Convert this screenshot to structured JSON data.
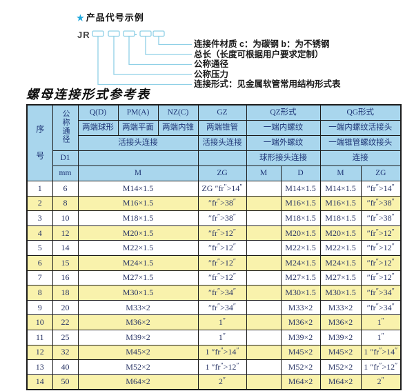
{
  "colors": {
    "header_bg": "#a9d6ed",
    "row_alt_bg": "#f9f2ac",
    "header_text": "#1e3576",
    "data_text": "#283465",
    "line_cyan": "#8fd0e6",
    "star_cyan": "#1ea7dc",
    "border": "#1b1b1b"
  },
  "product_code": {
    "star": "★",
    "section_title": "产品代号示例",
    "prefix": "JR",
    "dash": "-",
    "labels": [
      "连接件材质  c：为碳钢  b：为不锈钢",
      "总长（长度可根据用户要求定制）",
      "公称通径",
      "公称压力",
      "连接形式：见金属软管常用结构形式表"
    ]
  },
  "table": {
    "title": "螺母连接形式参考表",
    "header": {
      "seq": "序号",
      "dn": "公称通径",
      "d1": "D1",
      "mm": "mm",
      "q": "Q(D)",
      "pm": "PM(A)",
      "nz": "NZ(C)",
      "gz": "GZ",
      "qz": "QZ形式",
      "qg": "QG形式",
      "q_sub": "两端球形",
      "pm_sub": "两端平面",
      "nz_sub": "两端内锥",
      "gz_sub": "两端锥管",
      "qz_sub1": "一端内螺纹",
      "qg_sub1": "一端内螺纹活接头",
      "joint_conn": "活接头连接",
      "gz_conn": "活接头连接",
      "qz_sub2": "一端外螺纹",
      "qg_sub2": "一端锥管螺纹接头",
      "qz_conn": "球形接头连接",
      "qg_conn": "连接",
      "m": "M",
      "zg": "ZG",
      "qz_m": "M",
      "qz_d": "D",
      "qg_m": "M",
      "qg_zg": "ZG"
    },
    "rows": [
      {
        "seq": "1",
        "dn": "6",
        "m": "M14×1.5",
        "zg": "ZG 1/4\"",
        "qz_m": "",
        "qz_d": "M14×1.5",
        "qg_m": "M14×1.5",
        "qg_zg": "1/4\""
      },
      {
        "seq": "2",
        "dn": "8",
        "m": "M16×1.5",
        "zg": "3/8\"",
        "qz_m": "",
        "qz_d": "M16×1.5",
        "qg_m": "M16×1.5",
        "qg_zg": "3/8\""
      },
      {
        "seq": "3",
        "dn": "10",
        "m": "M18×1.5",
        "zg": "3/8\"",
        "qz_m": "",
        "qz_d": "M18×1.5",
        "qg_m": "M18×1.5",
        "qg_zg": "3/8\""
      },
      {
        "seq": "4",
        "dn": "12",
        "m": "M20×1.5",
        "zg": "1/2\"",
        "qz_m": "",
        "qz_d": "M20×1.5",
        "qg_m": "M20×1.5",
        "qg_zg": "1/2\""
      },
      {
        "seq": "5",
        "dn": "14",
        "m": "M22×1.5",
        "zg": "1/2\"",
        "qz_m": "",
        "qz_d": "M22×1.5",
        "qg_m": "M22×1.5",
        "qg_zg": "1/2\""
      },
      {
        "seq": "6",
        "dn": "15",
        "m": "M24×1.5",
        "zg": "1/2\"",
        "qz_m": "",
        "qz_d": "M24×1.5",
        "qg_m": "M24×1.5",
        "qg_zg": "1/2\""
      },
      {
        "seq": "7",
        "dn": "16",
        "m": "M27×1.5",
        "zg": "1/2\"",
        "qz_m": "",
        "qz_d": "M27×1.5",
        "qg_m": "M27×1.5",
        "qg_zg": "1/2\""
      },
      {
        "seq": "8",
        "dn": "18",
        "m": "M30×1.5",
        "zg": "3/4\"",
        "qz_m": "",
        "qz_d": "M30×1.5",
        "qg_m": "M30×1.5",
        "qg_zg": "3/4\""
      },
      {
        "seq": "9",
        "dn": "20",
        "m": "M33×2",
        "zg": "3/4\"",
        "qz_m": "",
        "qz_d": "M33×2",
        "qg_m": "M33×2",
        "qg_zg": "3/4\""
      },
      {
        "seq": "10",
        "dn": "22",
        "m": "M36×2",
        "zg": "1\"",
        "qz_m": "",
        "qz_d": "M36×2",
        "qg_m": "M36×2",
        "qg_zg": "1\""
      },
      {
        "seq": "11",
        "dn": "25",
        "m": "M39×2",
        "zg": "1\"",
        "qz_m": "",
        "qz_d": "M39×2",
        "qg_m": "M39×2",
        "qg_zg": "1\""
      },
      {
        "seq": "12",
        "dn": "32",
        "m": "M45×2",
        "zg": "1 1/4\"",
        "qz_m": "",
        "qz_d": "M45×2",
        "qg_m": "M45×2",
        "qg_zg": "1 1/4\""
      },
      {
        "seq": "13",
        "dn": "40",
        "m": "M52×2",
        "zg": "1 1/2\"",
        "qz_m": "",
        "qz_d": "M52×2",
        "qg_m": "M52×2",
        "qg_zg": "1 1/2\""
      },
      {
        "seq": "14",
        "dn": "50",
        "m": "M64×2",
        "zg": "2\"",
        "qz_m": "",
        "qz_d": "M64×2",
        "qg_m": "M64×2",
        "qg_zg": "2\""
      }
    ]
  }
}
